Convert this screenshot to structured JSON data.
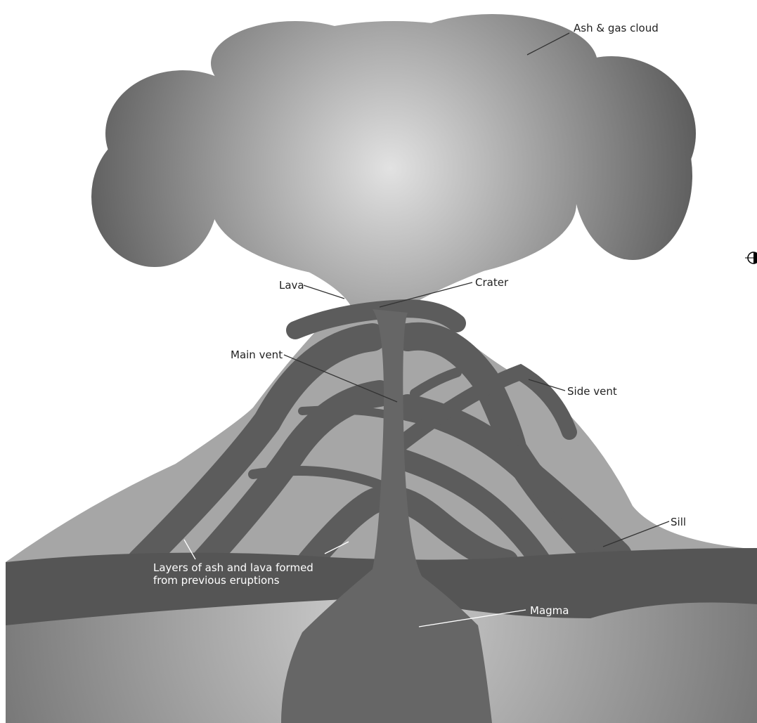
{
  "labels": [
    {
      "text": "Ash & gas cloud"
    },
    {
      "text": "Crater"
    },
    {
      "text": "Lava"
    },
    {
      "text": "Main vent"
    },
    {
      "text": "Side vent"
    },
    {
      "text": "Sill"
    },
    {
      "lines": [
        "Layers of ash and lava formed",
        "from previous eruptions"
      ]
    },
    {
      "text": "Magma"
    }
  ]
}
